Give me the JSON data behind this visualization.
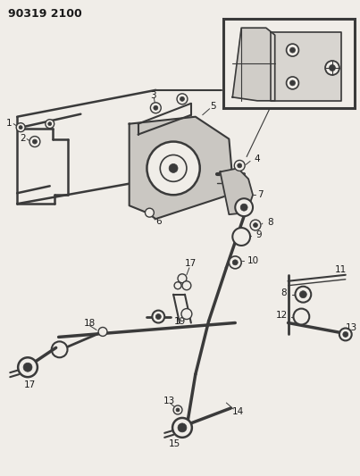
{
  "title": "90319 2100",
  "bg_color": "#f0ede8",
  "line_color": "#3a3a3a",
  "text_color": "#1a1a1a",
  "fig_width": 4.03,
  "fig_height": 5.33,
  "dpi": 100
}
